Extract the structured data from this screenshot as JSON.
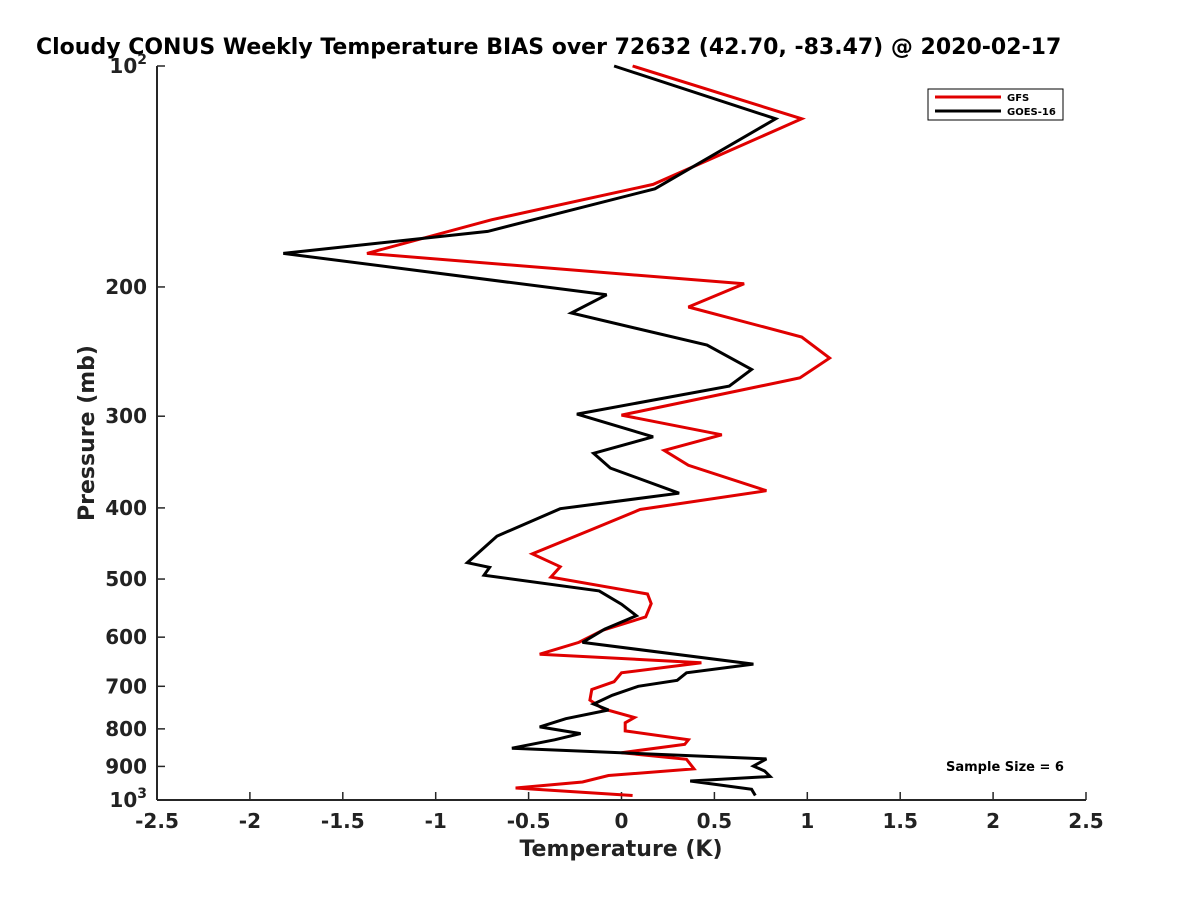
{
  "chart_data": {
    "type": "line",
    "title": "Cloudy CONUS Weekly Temperature BIAS over 72632 (42.70, -83.47) @ 2020-02-17",
    "xlabel": "Temperature (K)",
    "ylabel": "Pressure (mb)",
    "xlim": [
      -2.5,
      2.5
    ],
    "ylim": [
      100,
      1000
    ],
    "yscale": "log",
    "y_reversed": true,
    "grid": false,
    "legend_position": "top-right",
    "x_ticks": [
      "-2.5",
      "-2",
      "-1.5",
      "-1",
      "-0.5",
      "0",
      "0.5",
      "1",
      "1.5",
      "2",
      "2.5"
    ],
    "x_tick_values": [
      -2.5,
      -2,
      -1.5,
      -1,
      -0.5,
      0,
      0.5,
      1,
      1.5,
      2,
      2.5
    ],
    "y_ticks": [
      {
        "value": 100,
        "base": "10",
        "exp": "2"
      },
      {
        "value": 200,
        "label": "200"
      },
      {
        "value": 300,
        "label": "300"
      },
      {
        "value": 400,
        "label": "400"
      },
      {
        "value": 500,
        "label": "500"
      },
      {
        "value": 600,
        "label": "600"
      },
      {
        "value": 700,
        "label": "700"
      },
      {
        "value": 800,
        "label": "800"
      },
      {
        "value": 900,
        "label": "900"
      },
      {
        "value": 1000,
        "base": "10",
        "exp": "3"
      }
    ],
    "series": [
      {
        "name": "GFS",
        "color": "#e00000",
        "points": [
          [
            0.06,
            100
          ],
          [
            0.97,
            118
          ],
          [
            0.17,
            145
          ],
          [
            -0.7,
            162
          ],
          [
            -1.37,
            180
          ],
          [
            0.66,
            198
          ],
          [
            0.36,
            213
          ],
          [
            0.97,
            234
          ],
          [
            1.12,
            250
          ],
          [
            0.96,
            266
          ],
          [
            0.0,
            299
          ],
          [
            0.54,
            318
          ],
          [
            0.23,
            334
          ],
          [
            0.36,
            350
          ],
          [
            0.78,
            379
          ],
          [
            0.1,
            402
          ],
          [
            -0.15,
            427
          ],
          [
            -0.48,
            462
          ],
          [
            -0.33,
            481
          ],
          [
            -0.38,
            497
          ],
          [
            0.14,
            524
          ],
          [
            0.16,
            540
          ],
          [
            0.13,
            563
          ],
          [
            -0.1,
            587
          ],
          [
            -0.23,
            610
          ],
          [
            -0.44,
            633
          ],
          [
            0.43,
            650
          ],
          [
            0.0,
            671
          ],
          [
            -0.04,
            690
          ],
          [
            -0.16,
            707
          ],
          [
            -0.17,
            731
          ],
          [
            -0.1,
            751
          ],
          [
            0.07,
            772
          ],
          [
            0.02,
            785
          ],
          [
            0.02,
            805
          ],
          [
            0.36,
            828
          ],
          [
            0.34,
            840
          ],
          [
            0.0,
            862
          ],
          [
            0.35,
            880
          ],
          [
            0.39,
            907
          ],
          [
            -0.07,
            926
          ],
          [
            -0.21,
            945
          ],
          [
            -0.57,
            963
          ],
          [
            0.06,
            986
          ]
        ]
      },
      {
        "name": "GOES-16",
        "color": "#000000",
        "points": [
          [
            -0.04,
            100
          ],
          [
            0.83,
            118
          ],
          [
            0.18,
            147
          ],
          [
            -0.72,
            168
          ],
          [
            -1.82,
            180
          ],
          [
            -0.08,
            205
          ],
          [
            -0.27,
            217
          ],
          [
            0.46,
            240
          ],
          [
            0.7,
            259
          ],
          [
            0.58,
            273
          ],
          [
            -0.24,
            298
          ],
          [
            0.17,
            320
          ],
          [
            -0.15,
            337
          ],
          [
            -0.06,
            353
          ],
          [
            0.31,
            382
          ],
          [
            -0.33,
            401
          ],
          [
            -0.67,
            437
          ],
          [
            -0.83,
            475
          ],
          [
            -0.71,
            482
          ],
          [
            -0.74,
            494
          ],
          [
            -0.12,
            519
          ],
          [
            0.0,
            541
          ],
          [
            0.08,
            561
          ],
          [
            -0.09,
            585
          ],
          [
            -0.21,
            610
          ],
          [
            0.71,
            653
          ],
          [
            0.35,
            671
          ],
          [
            0.3,
            687
          ],
          [
            0.09,
            700
          ],
          [
            -0.05,
            720
          ],
          [
            -0.15,
            740
          ],
          [
            -0.07,
            754
          ],
          [
            -0.3,
            775
          ],
          [
            -0.44,
            795
          ],
          [
            -0.22,
            812
          ],
          [
            -0.36,
            828
          ],
          [
            -0.59,
            850
          ],
          [
            0.78,
            879
          ],
          [
            0.71,
            899
          ],
          [
            0.77,
            913
          ],
          [
            0.8,
            929
          ],
          [
            0.37,
            942
          ],
          [
            0.7,
            967
          ],
          [
            0.72,
            986
          ]
        ]
      }
    ],
    "annotation": "Sample Size = 6"
  }
}
